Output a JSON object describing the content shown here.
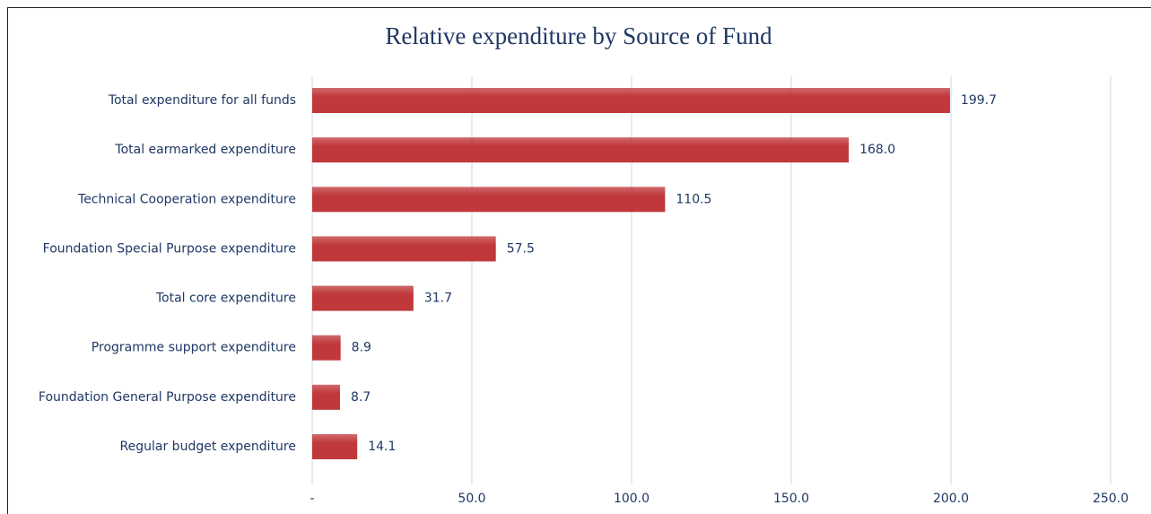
{
  "chart_data": {
    "type": "bar",
    "orientation": "horizontal",
    "title": "Relative expenditure by Source of Fund",
    "categories": [
      "Total expenditure for all funds",
      "Total earmarked expenditure",
      "Technical Cooperation expenditure",
      "Foundation Special Purpose expenditure",
      "Total core expenditure",
      "Programme support expenditure",
      "Foundation General Purpose expenditure",
      "Regular budget expenditure"
    ],
    "values": [
      199.7,
      168,
      110.5,
      57.5,
      31.7,
      8.9,
      8.7,
      14.1
    ],
    "value_labels": [
      "199.7",
      "168.0",
      "110.5",
      "57.5",
      "31.7",
      "8.9",
      "8.7",
      "14.1"
    ],
    "color": "#c0383a",
    "xlim": [
      0,
      250
    ],
    "xticks": [
      {
        "value": 0,
        "label": "-"
      },
      {
        "value": 50,
        "label": "50.0"
      },
      {
        "value": 100,
        "label": "100.0"
      },
      {
        "value": 150,
        "label": "150.0"
      },
      {
        "value": 200,
        "label": "200.0"
      },
      {
        "value": 250,
        "label": "250.0"
      }
    ],
    "grid": true
  }
}
